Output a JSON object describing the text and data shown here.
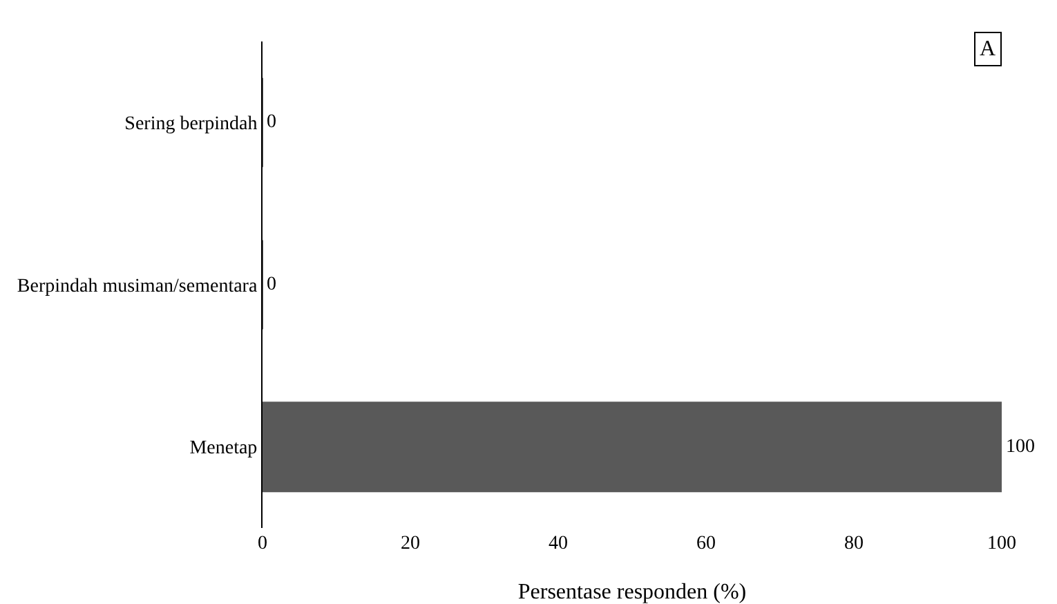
{
  "chart_data": {
    "type": "bar",
    "orientation": "horizontal",
    "categories": [
      "Sering berpindah",
      "Berpindah musiman/sementara",
      "Menetap"
    ],
    "values": [
      0,
      0,
      100
    ],
    "color": "#595959",
    "xlabel": "Persentase responden (%)",
    "xlim": [
      0,
      100
    ],
    "xticks": [
      0,
      20,
      40,
      60,
      80,
      100
    ],
    "data_labels": true,
    "grid": false,
    "legend": false,
    "annotations": [
      "A"
    ]
  }
}
